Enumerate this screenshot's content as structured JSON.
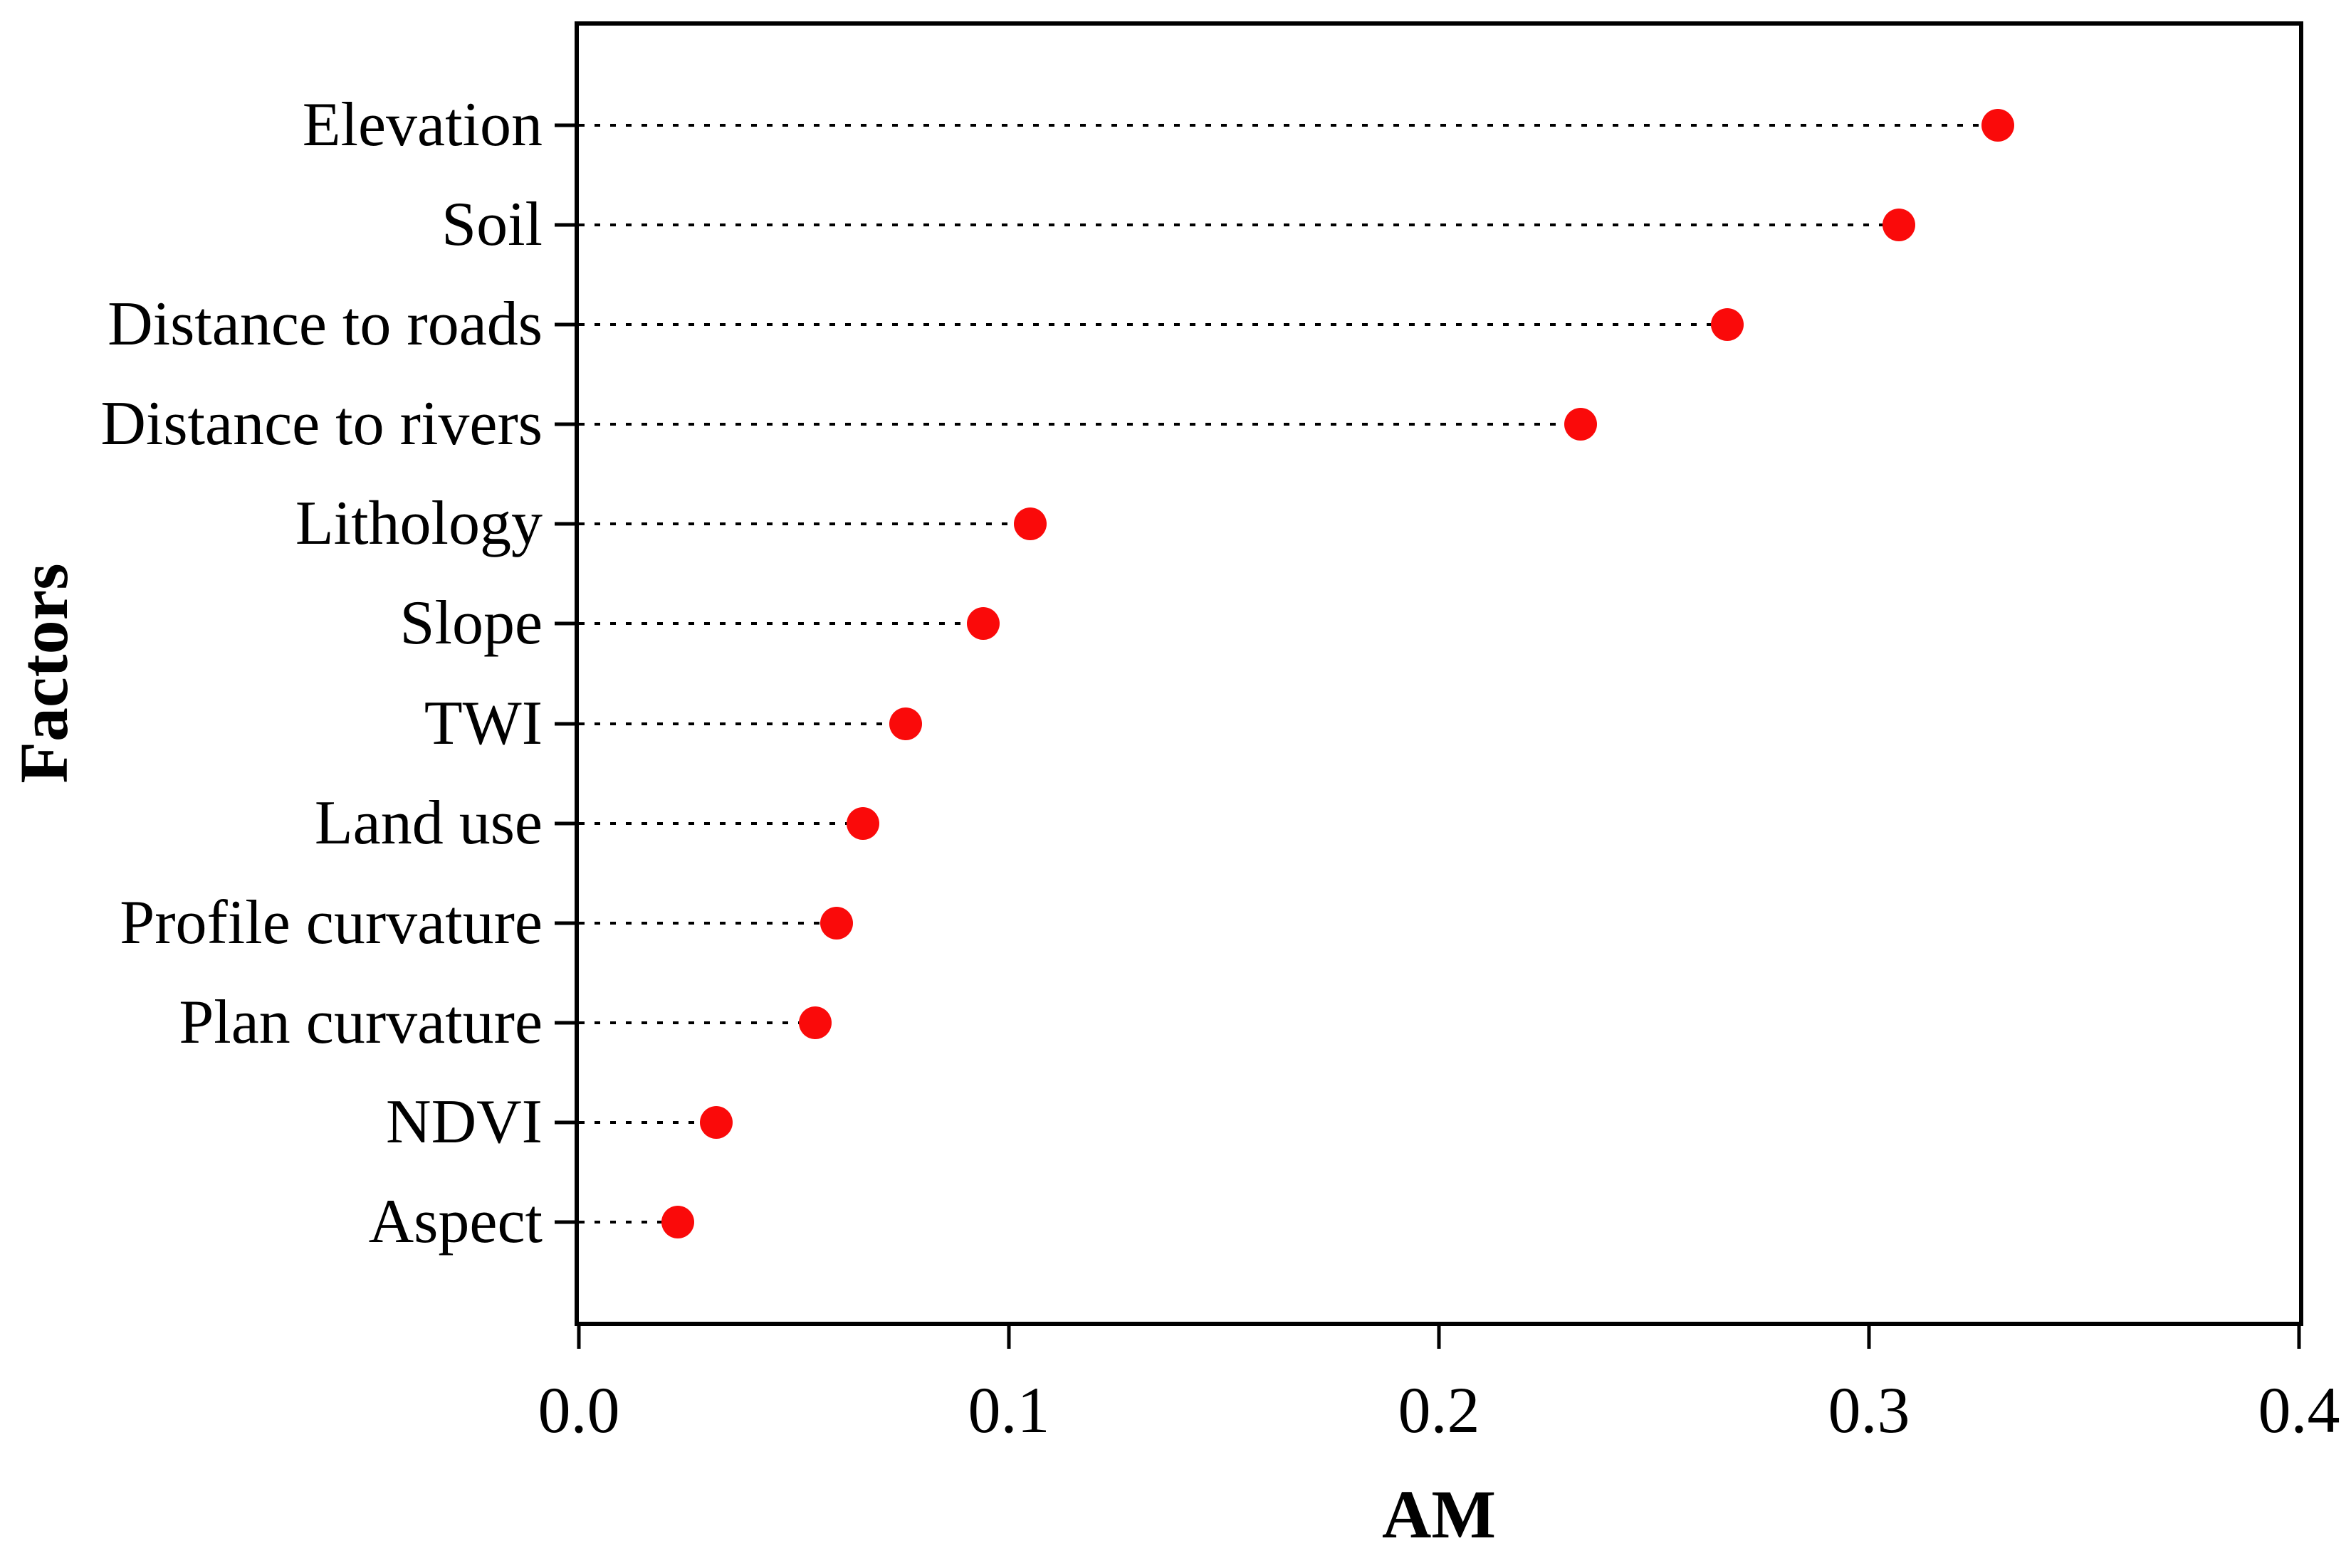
{
  "chart_data": {
    "type": "scatter",
    "subtype": "dot-plot-with-dotted-leaders",
    "title": "",
    "xlabel": "AM",
    "ylabel": "Factors",
    "xlim": [
      0.0,
      0.4
    ],
    "x_ticks": [
      "0.0",
      "0.1",
      "0.2",
      "0.3",
      "0.4"
    ],
    "x_tick_values": [
      0.0,
      0.1,
      0.2,
      0.3,
      0.4
    ],
    "grid": "dotted horizontal leader lines only",
    "legend": "none",
    "dot_color": "#fa0a0a",
    "categories": [
      "Elevation",
      "Soil",
      "Distance to roads",
      "Distance to rivers",
      "Lithology",
      "Slope",
      "TWI",
      "Land use",
      "Profile curvature",
      "Plan curvature",
      "NDVI",
      "Aspect"
    ],
    "values": [
      0.33,
      0.307,
      0.267,
      0.233,
      0.105,
      0.094,
      0.076,
      0.066,
      0.06,
      0.055,
      0.032,
      0.023
    ]
  }
}
